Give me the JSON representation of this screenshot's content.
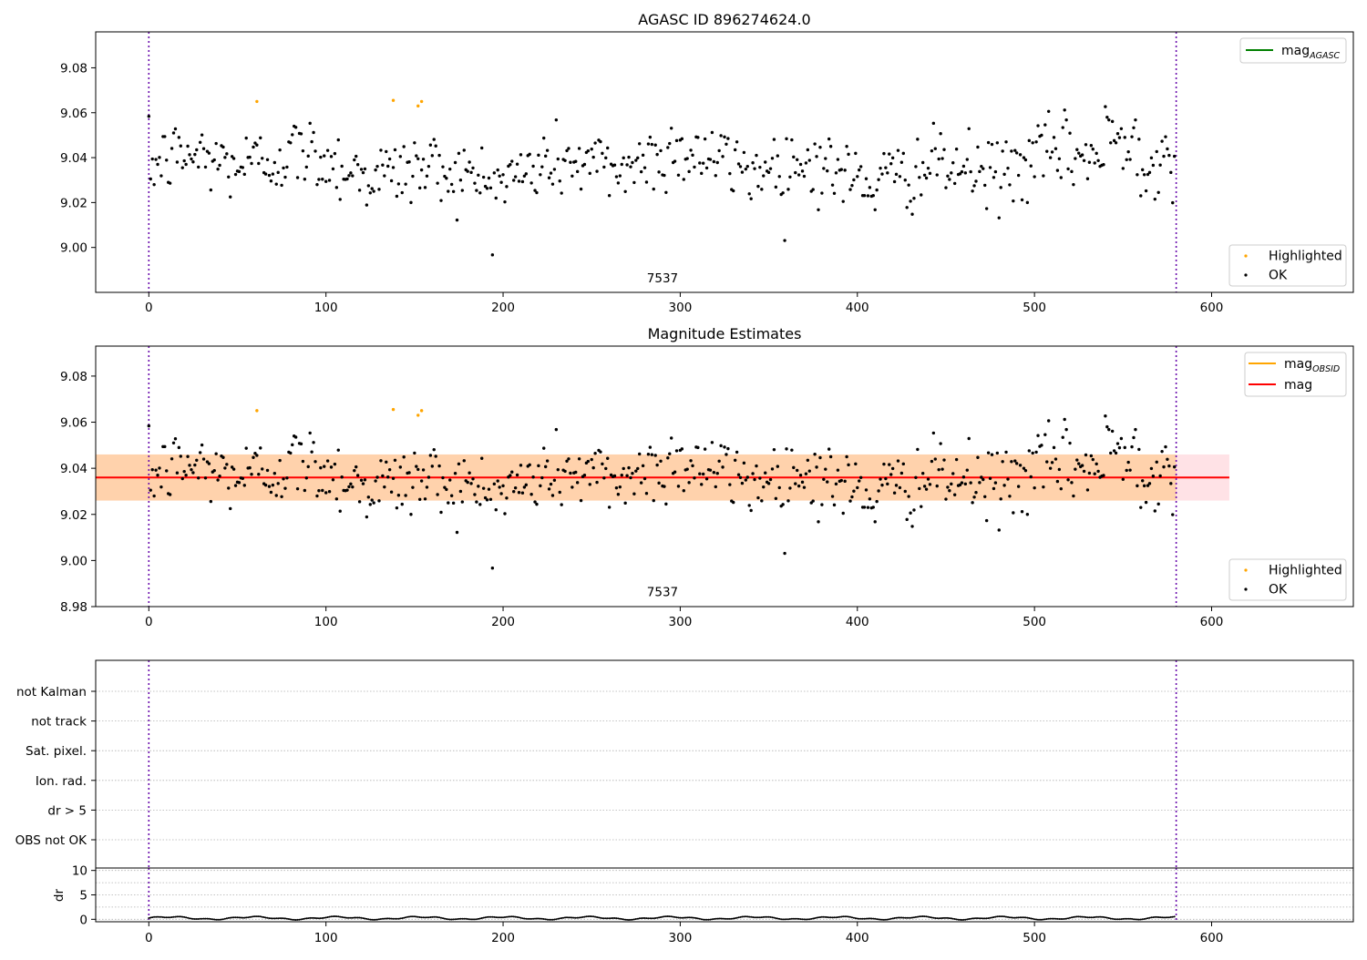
{
  "chart_data": [
    {
      "type": "scatter",
      "title": "AGASC ID 896274624.0",
      "xlim": [
        -30,
        680
      ],
      "ylim": [
        8.98,
        9.096
      ],
      "x_ticks": [
        0,
        100,
        200,
        300,
        400,
        500,
        600
      ],
      "x_tick_labels": [
        "0",
        "100",
        "200",
        "300",
        "400",
        "500",
        "600"
      ],
      "y_ticks": [
        9.0,
        9.02,
        9.04,
        9.06,
        9.08
      ],
      "y_tick_labels": [
        "9.00",
        "9.02",
        "9.04",
        "9.06",
        "9.08"
      ],
      "vertical_lines_x": [
        0,
        580
      ],
      "annotation": {
        "text": "7537",
        "x": 290,
        "y": 8.9845
      },
      "legend_top": {
        "position": "top-right",
        "entries": [
          {
            "label": "mag",
            "label_sub": "AGASC",
            "color": "#008000",
            "kind": "line"
          }
        ]
      },
      "legend_bottom": {
        "position": "bottom-right",
        "entries": [
          {
            "label": "Highlighted",
            "color": "#ffa500",
            "kind": "point"
          },
          {
            "label": "OK",
            "color": "#000000",
            "kind": "point"
          }
        ]
      },
      "series": [
        {
          "name": "Highlighted",
          "color": "#ffa500",
          "x": [
            61,
            138,
            152,
            154
          ],
          "y": [
            9.065,
            9.0655,
            9.063,
            9.065
          ]
        },
        {
          "name": "OK",
          "color": "#000000",
          "generated": true,
          "n": 580,
          "mean": 9.036,
          "std": 0.0095
        }
      ]
    },
    {
      "type": "scatter",
      "title": "Magnitude Estimates",
      "xlim": [
        -30,
        680
      ],
      "ylim": [
        8.98,
        9.093
      ],
      "x_ticks": [
        0,
        100,
        200,
        300,
        400,
        500,
        600
      ],
      "x_tick_labels": [
        "0",
        "100",
        "200",
        "300",
        "400",
        "500",
        "600"
      ],
      "y_ticks": [
        8.98,
        9.0,
        9.02,
        9.04,
        9.06,
        9.08
      ],
      "y_tick_labels": [
        "8.98",
        "9.00",
        "9.02",
        "9.04",
        "9.06",
        "9.08"
      ],
      "vertical_lines_x": [
        0,
        580
      ],
      "annotation": {
        "text": "7537",
        "x": 290,
        "y": 8.9845
      },
      "mag_line": {
        "y": 9.036,
        "color": "#ff0000"
      },
      "mag_band": {
        "y1": 9.026,
        "y2": 9.046,
        "x1": -30,
        "x2": 610,
        "color": "#ffb6c1"
      },
      "obsid_band": {
        "y1": 9.026,
        "y2": 9.046,
        "x1": -30,
        "x2": 580,
        "color": "#ffa500"
      },
      "legend_top": {
        "position": "top-right",
        "entries": [
          {
            "label": "mag",
            "label_sub": "OBSID",
            "color": "#ffa500",
            "kind": "line"
          },
          {
            "label": "mag",
            "label_sub": "",
            "color": "#ff0000",
            "kind": "line"
          }
        ]
      },
      "legend_bottom": {
        "position": "bottom-right",
        "entries": [
          {
            "label": "Highlighted",
            "color": "#ffa500",
            "kind": "point"
          },
          {
            "label": "OK",
            "color": "#000000",
            "kind": "point"
          }
        ]
      },
      "series": [
        {
          "name": "Highlighted",
          "color": "#ffa500",
          "x": [
            61,
            138,
            152,
            154
          ],
          "y": [
            9.065,
            9.0655,
            9.063,
            9.065
          ]
        },
        {
          "name": "OK",
          "color": "#000000",
          "generated": true,
          "n": 580,
          "mean": 9.036,
          "std": 0.0095
        }
      ]
    },
    {
      "type": "scatter",
      "title": "",
      "xlim": [
        -30,
        680
      ],
      "flag_labels": [
        "not Kalman",
        "not track",
        "Sat. pixel.",
        "Ion. rad.",
        "dr > 5",
        "OBS not OK"
      ],
      "vertical_lines_x": [
        0,
        580
      ]
    },
    {
      "type": "line",
      "title": "",
      "ylabel": "dr",
      "xlim": [
        -30,
        680
      ],
      "ylim": [
        -0.5,
        10.5
      ],
      "x_ticks": [
        0,
        100,
        200,
        300,
        400,
        500,
        600
      ],
      "x_tick_labels": [
        "0",
        "100",
        "200",
        "300",
        "400",
        "500",
        "600"
      ],
      "y_ticks": [
        0,
        5,
        10
      ],
      "y_tick_labels": [
        "0",
        "5",
        "10"
      ],
      "vertical_lines_x": [
        0,
        580
      ],
      "series": [
        {
          "name": "",
          "color": "#000000",
          "generated": true,
          "n": 580,
          "mean": 0.25,
          "amp": 0.25
        }
      ]
    }
  ]
}
